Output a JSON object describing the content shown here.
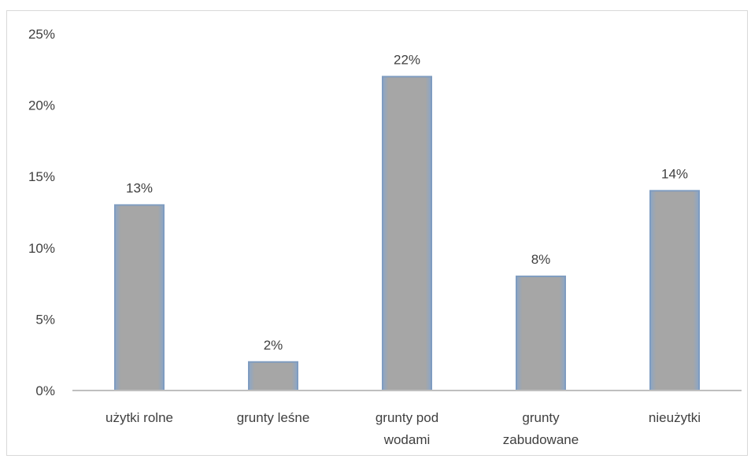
{
  "chart_data": {
    "type": "bar",
    "categories": [
      [
        "użytki rolne"
      ],
      [
        "grunty leśne"
      ],
      [
        "grunty pod",
        "wodami"
      ],
      [
        "grunty",
        "zabudowane"
      ],
      [
        "nieużytki"
      ]
    ],
    "values": [
      13,
      2,
      22,
      8,
      14
    ],
    "data_labels": [
      "13%",
      "2%",
      "22%",
      "8%",
      "14%"
    ],
    "y_ticks": [
      "0%",
      "5%",
      "10%",
      "15%",
      "20%",
      "25%"
    ],
    "ylim": [
      0,
      25
    ],
    "grid": false,
    "colors": {
      "bar_fill": "#a6a6a6",
      "bar_edge": "#7f9cc0",
      "axis": "#bfbfbf",
      "text": "#404040"
    }
  }
}
